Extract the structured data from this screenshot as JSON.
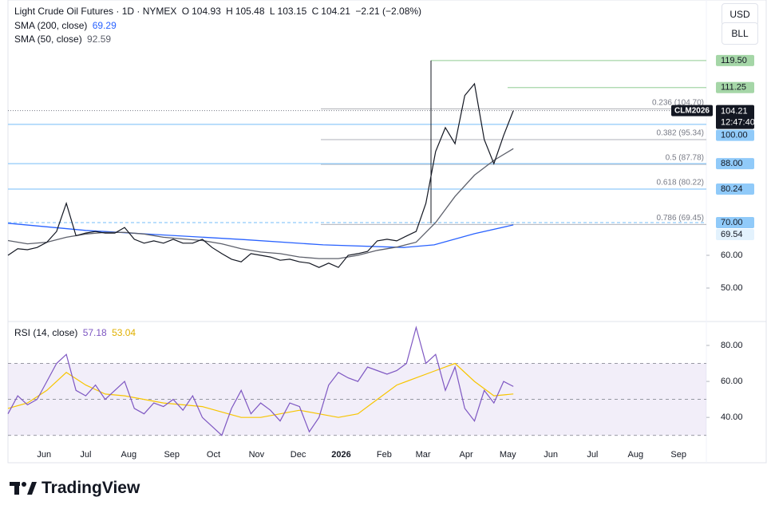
{
  "brand": "TradingView",
  "currency": "USD",
  "unit": "BLL",
  "chart_data": [
    {
      "type": "line",
      "title": "Light Crude Oil Futures · 1D · NYMEX",
      "quote": [
        {
          "label": "O",
          "value": 104.93
        },
        {
          "label": "H",
          "value": 105.48
        },
        {
          "label": "L",
          "value": 103.15
        },
        {
          "label": "C",
          "value": 104.21
        }
      ],
      "change": "−2.21 (−2.08%)",
      "color": "#131722",
      "x": [
        5,
        12,
        19,
        26,
        33,
        40,
        47,
        54,
        61,
        68,
        75,
        82,
        89,
        96,
        103,
        110,
        117,
        124,
        131,
        138,
        145,
        152,
        159,
        166,
        173,
        180,
        187,
        194,
        201,
        208,
        215,
        222,
        229,
        236,
        243,
        250,
        257,
        264,
        271,
        278,
        285,
        292,
        299,
        306,
        313,
        320,
        327,
        334,
        341,
        348,
        355,
        362,
        369
      ],
      "values": [
        60,
        62,
        61.7,
        62.4,
        64,
        67.3,
        75.9,
        66,
        66.8,
        67.3,
        66.8,
        66.8,
        68.5,
        64.9,
        63.7,
        64.4,
        63.7,
        64.9,
        63.7,
        63.7,
        64.9,
        62.4,
        60.5,
        58.8,
        58,
        60.5,
        60,
        59.5,
        58.5,
        58.8,
        58,
        57.6,
        56.3,
        57.6,
        56.3,
        60,
        60.5,
        61.2,
        64.4,
        64.9,
        64.4,
        65.9,
        67.3,
        75.9,
        91.7,
        99,
        94.1,
        108.8,
        112.4,
        95.4,
        88,
        96.6,
        104.21
      ],
      "indicators": [
        {
          "name": "SMA (200, close)",
          "value": 69.29,
          "color": "#2962ff",
          "x": [
            5,
            61,
            118,
            175,
            232,
            290,
            312,
            341,
            369
          ],
          "values": [
            69.8,
            67.6,
            66.2,
            64.8,
            63.2,
            62.4,
            63.2,
            66.6,
            69.29
          ]
        },
        {
          "name": "SMA (50, close)",
          "value": 92.59,
          "color": "#5d606b",
          "x": [
            5,
            19,
            33,
            47,
            61,
            75,
            89,
            103,
            117,
            131,
            145,
            159,
            173,
            187,
            201,
            215,
            229,
            243,
            257,
            271,
            285,
            299,
            313,
            327,
            341,
            355,
            369
          ],
          "values": [
            64.5,
            63.5,
            64,
            65.5,
            66.5,
            67,
            67,
            66.5,
            65.5,
            65,
            64.5,
            63.5,
            62,
            61,
            60.5,
            59.5,
            59,
            59,
            60,
            61.5,
            62.5,
            64,
            70,
            78,
            84.5,
            89,
            92.59
          ]
        }
      ],
      "xlim": [
        5,
        508
      ],
      "ylim": [
        40.5,
        138
      ],
      "xticks": [
        {
          "value": 31,
          "label": "Jun"
        },
        {
          "value": 61,
          "label": "Jul"
        },
        {
          "value": 92,
          "label": "Aug"
        },
        {
          "value": 123,
          "label": "Sep"
        },
        {
          "value": 153,
          "label": "Oct"
        },
        {
          "value": 184,
          "label": "Nov"
        },
        {
          "value": 214,
          "label": "Dec"
        },
        {
          "value": 245,
          "label": "2026"
        },
        {
          "value": 276,
          "label": "Feb"
        },
        {
          "value": 304,
          "label": "Mar"
        },
        {
          "value": 335,
          "label": "Apr"
        },
        {
          "value": 365,
          "label": "May"
        },
        {
          "value": 396,
          "label": "Jun"
        },
        {
          "value": 426,
          "label": "Jul"
        },
        {
          "value": 457,
          "label": "Aug"
        },
        {
          "value": 488,
          "label": "Sep"
        }
      ],
      "yticks": [
        {
          "value": 50,
          "label": "50.00"
        },
        {
          "value": 60,
          "label": "60.00"
        }
      ],
      "levels": [
        {
          "value": 119.5,
          "label": "119.50",
          "color": "#a5d6a7",
          "style": "ray"
        },
        {
          "value": 111.25,
          "label": "111.25",
          "color": "#a5d6a7",
          "style": "ray"
        },
        {
          "value": 100,
          "label": "100.00",
          "color": "#90caf9",
          "style": "solid"
        },
        {
          "value": 88,
          "label": "88.00",
          "color": "#90caf9",
          "style": "solid"
        },
        {
          "value": 80.24,
          "label": "80.24",
          "color": "#90caf9",
          "style": "solid"
        },
        {
          "value": 70,
          "label": "70.00",
          "color": "#90caf9",
          "style": "dashed"
        },
        {
          "value": 69.54,
          "label": "69.54",
          "color": "#e3f2fd",
          "style": "none"
        }
      ],
      "fib": [
        {
          "value": 104.7,
          "label": "0.236 (104.70)"
        },
        {
          "value": 95.34,
          "label": "0.382 (95.34)"
        },
        {
          "value": 87.78,
          "label": "0.5 (87.78)"
        },
        {
          "value": 80.22,
          "label": "0.618 (80.22)"
        },
        {
          "value": 69.45,
          "label": "0.786 (69.45)"
        }
      ],
      "current": {
        "symbol": "CLM2026",
        "price": 104.21,
        "countdown": "12:47:40"
      }
    },
    {
      "type": "line",
      "title": "RSI (14, close)",
      "series": [
        {
          "value": 57.18,
          "color": "#7e57c2",
          "x": [
            5,
            12,
            19,
            26,
            33,
            40,
            47,
            54,
            61,
            68,
            75,
            82,
            89,
            96,
            103,
            110,
            117,
            124,
            131,
            138,
            145,
            152,
            159,
            166,
            173,
            180,
            187,
            194,
            201,
            208,
            215,
            222,
            229,
            236,
            243,
            250,
            257,
            264,
            271,
            278,
            285,
            292,
            299,
            306,
            313,
            320,
            327,
            334,
            341,
            348,
            355,
            362,
            369
          ],
          "values": [
            42,
            52,
            47,
            50,
            60,
            70,
            75,
            55,
            52,
            58,
            50,
            55,
            60,
            45,
            42,
            48,
            46,
            50,
            44,
            52,
            40,
            35,
            30,
            45,
            55,
            42,
            48,
            44,
            38,
            48,
            46,
            32,
            40,
            58,
            65,
            62,
            60,
            68,
            66,
            64,
            66,
            70,
            90,
            70,
            75,
            55,
            68,
            45,
            38,
            55,
            48,
            60,
            57.18
          ]
        },
        {
          "value": 53.04,
          "color": "#f7c500",
          "x": [
            5,
            19,
            33,
            47,
            61,
            75,
            89,
            103,
            117,
            131,
            145,
            159,
            173,
            187,
            201,
            215,
            229,
            243,
            257,
            271,
            285,
            299,
            313,
            327,
            341,
            355,
            369
          ],
          "values": [
            45,
            48,
            55,
            65,
            58,
            53,
            52,
            50,
            48,
            47,
            46,
            43,
            40,
            40,
            42,
            44,
            42,
            40,
            42,
            50,
            58,
            62,
            66,
            70,
            60,
            52,
            53.04
          ]
        }
      ],
      "xlim": [
        5,
        508
      ],
      "ylim": [
        25,
        92.4
      ],
      "yticks": [
        {
          "value": 40,
          "label": "40.00"
        },
        {
          "value": 60,
          "label": "60.00"
        },
        {
          "value": 80,
          "label": "80.00"
        }
      ],
      "bands": [
        30,
        50,
        70
      ]
    }
  ]
}
